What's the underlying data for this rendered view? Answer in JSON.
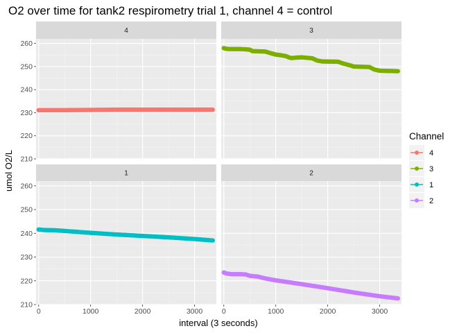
{
  "chart_data": {
    "type": "scatter",
    "title": "O2 over time for tank2 respirometry trial 1, channel 4 = control",
    "xlabel": "interval (3 seconds)",
    "ylabel": "umol O2/L",
    "xlim": [
      -50,
      3420
    ],
    "ylim": [
      210,
      262
    ],
    "x_ticks": [
      0,
      1000,
      2000,
      3000
    ],
    "x_tick_labels": [
      "0",
      "1000",
      "2000",
      "3000"
    ],
    "y_ticks": [
      210,
      220,
      230,
      240,
      250,
      260
    ],
    "y_tick_labels": [
      "210",
      "220",
      "230",
      "240",
      "250",
      "260"
    ],
    "grid": true,
    "legend": {
      "title": "Channel",
      "position": "right",
      "entries": [
        {
          "label": "4",
          "color": "#F8766D"
        },
        {
          "label": "3",
          "color": "#7CAE00"
        },
        {
          "label": "1",
          "color": "#00BFC4"
        },
        {
          "label": "2",
          "color": "#C77CFF"
        }
      ]
    },
    "panels": [
      {
        "strip": "4",
        "series": "4",
        "color": "#F8766D",
        "x": [
          0,
          500,
          1000,
          1500,
          2000,
          2500,
          3000,
          3350
        ],
        "y": [
          231.1,
          231.1,
          231.2,
          231.3,
          231.3,
          231.3,
          231.3,
          231.3
        ]
      },
      {
        "strip": "3",
        "series": "3",
        "color": "#7CAE00",
        "x": [
          0,
          50,
          100,
          300,
          400,
          500,
          550,
          800,
          900,
          1000,
          1100,
          1200,
          1250,
          1300,
          1400,
          1500,
          1700,
          1800,
          1900,
          2200,
          2300,
          2450,
          2500,
          2800,
          2900,
          3000,
          3350
        ],
        "y": [
          258,
          257.7,
          257.6,
          257.6,
          257.5,
          257.3,
          256.7,
          256.5,
          255.8,
          255.2,
          254.9,
          254.5,
          254,
          253.7,
          253.9,
          254,
          253.6,
          252.6,
          252.2,
          252.1,
          251.3,
          250.4,
          250,
          249.8,
          248.7,
          248.2,
          248
        ]
      },
      {
        "strip": "1",
        "series": "1",
        "color": "#00BFC4",
        "x": [
          0,
          100,
          300,
          500,
          1000,
          1500,
          2000,
          2500,
          3000,
          3350
        ],
        "y": [
          241.6,
          241.4,
          241.3,
          241,
          240.2,
          239.5,
          238.9,
          238.3,
          237.6,
          237
        ]
      },
      {
        "strip": "2",
        "series": "2",
        "color": "#C77CFF",
        "x": [
          0,
          50,
          150,
          300,
          420,
          500,
          650,
          800,
          1000,
          1500,
          2000,
          2500,
          3000,
          3350
        ],
        "y": [
          223.5,
          223.1,
          222.8,
          222.8,
          222.7,
          222.1,
          221.8,
          221,
          220.2,
          218.6,
          216.9,
          215.1,
          213.5,
          212.6
        ]
      }
    ]
  }
}
